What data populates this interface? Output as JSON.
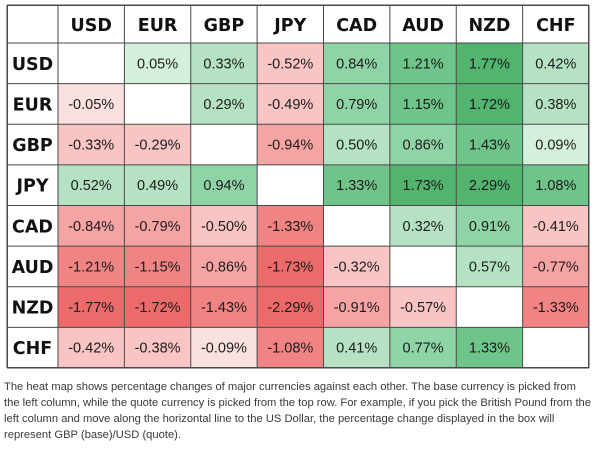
{
  "chart_data": {
    "type": "heatmap",
    "columns": [
      "USD",
      "EUR",
      "GBP",
      "JPY",
      "CAD",
      "AUD",
      "NZD",
      "CHF"
    ],
    "rows": [
      "USD",
      "EUR",
      "GBP",
      "JPY",
      "CAD",
      "AUD",
      "NZD",
      "CHF"
    ],
    "values": [
      [
        null,
        0.05,
        0.33,
        -0.52,
        0.84,
        1.21,
        1.77,
        0.42
      ],
      [
        -0.05,
        null,
        0.29,
        -0.49,
        0.79,
        1.15,
        1.72,
        0.38
      ],
      [
        -0.33,
        -0.29,
        null,
        -0.94,
        0.5,
        0.86,
        1.43,
        0.09
      ],
      [
        0.52,
        0.49,
        0.94,
        null,
        1.33,
        1.73,
        2.29,
        1.08
      ],
      [
        -0.84,
        -0.79,
        -0.5,
        -1.33,
        null,
        0.32,
        0.91,
        -0.41
      ],
      [
        -1.21,
        -1.15,
        -0.86,
        -1.73,
        -0.32,
        null,
        0.57,
        -0.77
      ],
      [
        -1.77,
        -1.72,
        -1.43,
        -2.29,
        -0.91,
        -0.57,
        null,
        -1.33
      ],
      [
        -0.42,
        -0.38,
        -0.09,
        -1.08,
        0.41,
        0.77,
        1.33,
        null
      ]
    ],
    "value_suffix": "%",
    "colors": {
      "positive": [
        "#d3f0dd",
        "#b4e2c3",
        "#8fd4a6",
        "#6ec489",
        "#52b46f"
      ],
      "negative": [
        "#fbe0e0",
        "#f8c4c4",
        "#f5a3a3",
        "#f08383",
        "#ec6a6a"
      ],
      "empty": "#ffffff",
      "grid": "#4a4a4a",
      "text": "#1c1c1c"
    }
  },
  "caption": "The heat map shows percentage changes of major currencies against each other. The base currency is picked from the left column, while the quote currency is picked from the top row. For example, if you pick the British Pound from the left column and move along the horizontal line to the US Dollar, the percentage change displayed in the box will represent GBP (base)/USD (quote)."
}
